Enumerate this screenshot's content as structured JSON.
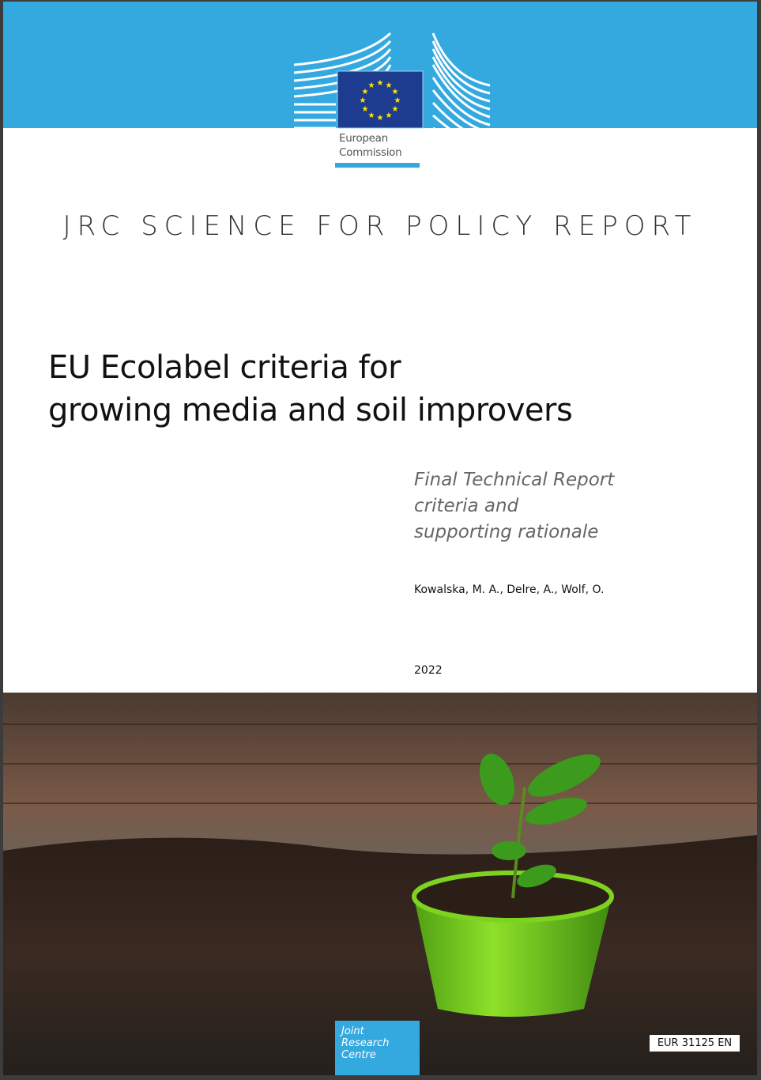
{
  "publisher": {
    "name_line1": "European",
    "name_line2": "Commission",
    "brand_color": "#33a9e0",
    "flag_color": "#1d3b8f",
    "star_color": "#ffe500"
  },
  "series": "JRC SCIENCE FOR POLICY REPORT",
  "title": {
    "line1": "EU Ecolabel criteria for",
    "line2": "growing media and soil improvers"
  },
  "subtitle": {
    "line1": "Final Technical Report",
    "line2": "criteria and",
    "line3": "supporting rationale"
  },
  "authors": "Kowalska, M. A., Delre, A., Wolf, O.",
  "year": "2022",
  "jrc": {
    "line1": "Joint",
    "line2": "Research",
    "line3": "Centre"
  },
  "report_number": "EUR 31125 EN"
}
